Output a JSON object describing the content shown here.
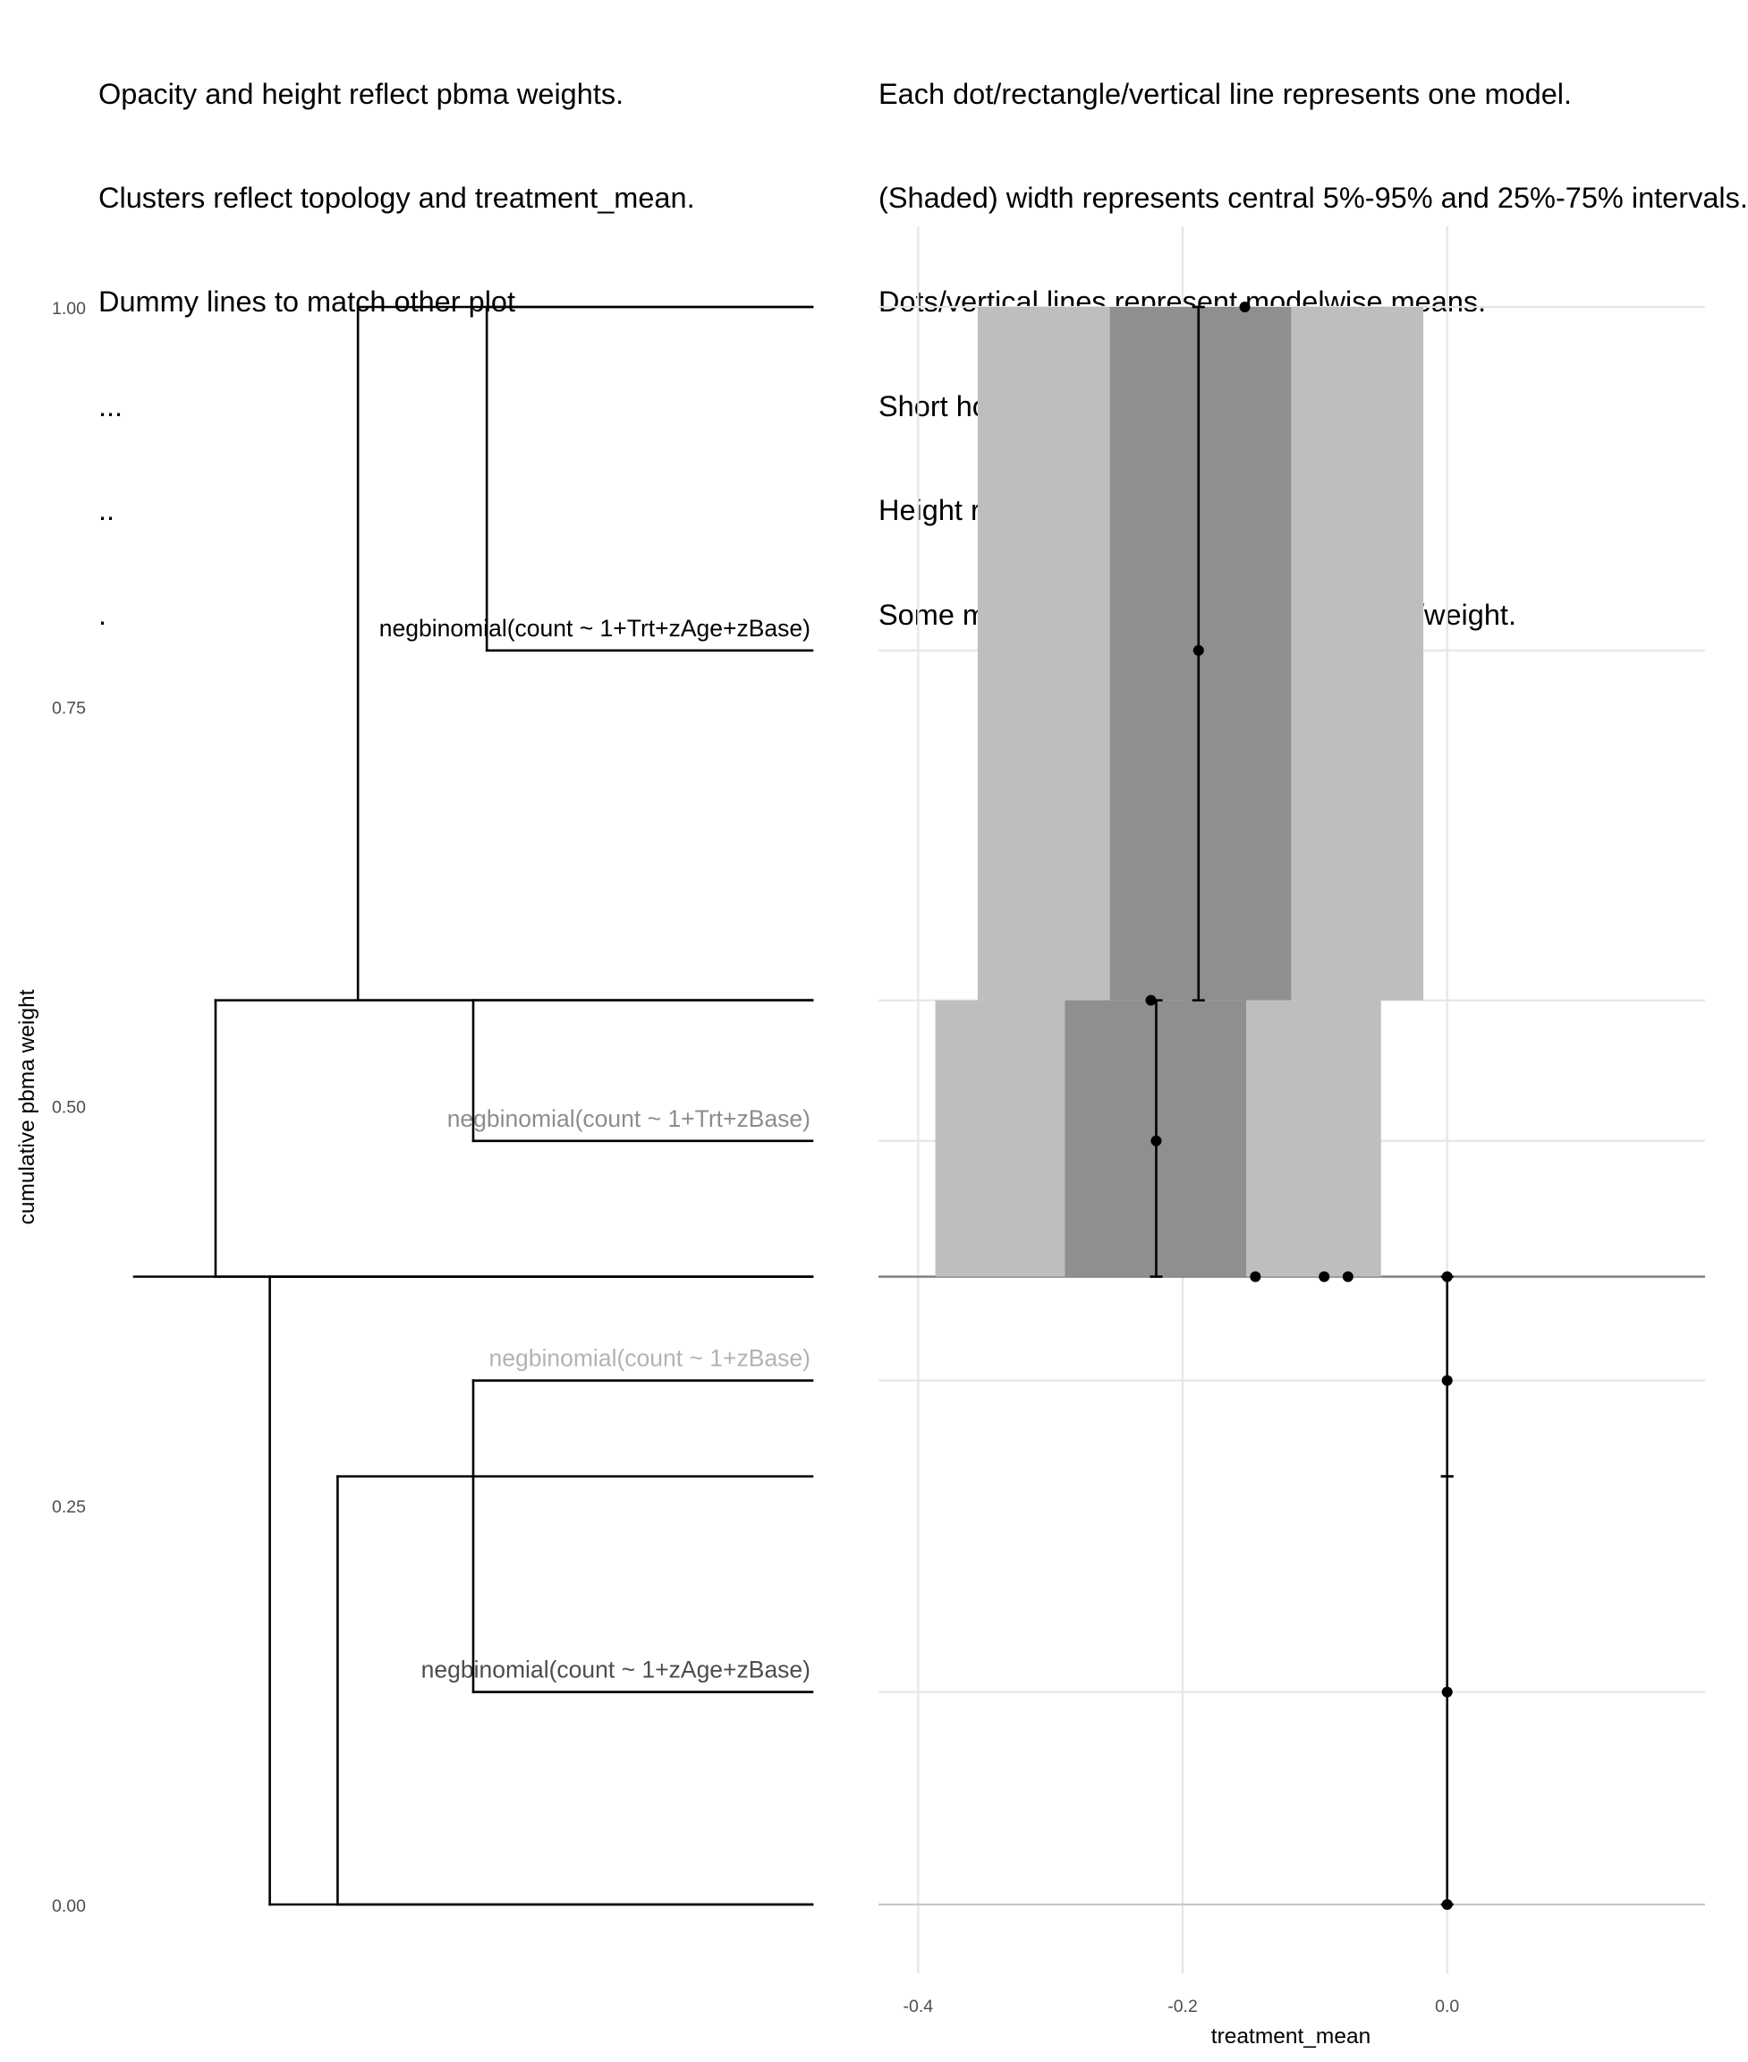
{
  "left_caption": [
    "Opacity and height reflect pbma weights.",
    "Clusters reflect topology and treatment_mean.",
    "Dummy lines to match other plot",
    "...",
    "..",
    "."
  ],
  "right_caption": [
    "Each dot/rectangle/vertical line represents one model.",
    "(Shaded) width represents central 5%-95% and 25%-75% intervals.",
    "Dots/vertical lines represent modelwise means.",
    "Short horizontal lines separate models.",
    "Height represent pbma weights.",
    "Some models have effectively zero height/weight."
  ],
  "colors": {
    "outer_interval": "#bebebe",
    "inner_interval": "#8f8f8f",
    "grid": "#e6e6e6",
    "ink": "#000000"
  },
  "chart_data": [
    {
      "type": "dendrogram",
      "ylabel": "cumulative pbma weight",
      "ylim": [
        0,
        1
      ],
      "yticks": [
        0,
        0.25,
        0.5,
        0.75,
        1
      ],
      "ytick_labels": [
        "0.00",
        "0.25",
        "0.50",
        "0.75",
        "1.00"
      ],
      "root_y": 0.393,
      "leaves": [
        {
          "label": "negbinomial(count ~ 1+Trt+zAge+zBase)",
          "y": 0.785,
          "opacity": 1.0
        },
        {
          "label": "negbinomial(count ~ 1+Trt+zBase)",
          "y": 0.478,
          "opacity": 0.45
        },
        {
          "label": "negbinomial(count ~ 1+zBase)",
          "y": 0.328,
          "opacity": 0.3
        },
        {
          "label": "negbinomial(count ~ 1+zAge+zBase)",
          "y": 0.133,
          "opacity": 0.7
        }
      ],
      "merges": [
        {
          "children": [
            "negbinomial(count ~ 1+Trt+zAge+zBase)",
            "top"
          ],
          "span": [
            0.785,
            1.0
          ],
          "height": 0.52
        },
        {
          "children": [
            "negbinomial(count ~ 1+Trt+zBase)",
            "upper-right"
          ],
          "span": [
            0.478,
            0.566
          ],
          "height": 0.5
        },
        {
          "children": [
            "upper-cluster-a",
            "upper-cluster-b"
          ],
          "span": [
            0.566,
            1.0
          ],
          "height": 0.33
        },
        {
          "children": [
            "upper",
            "root"
          ],
          "span": [
            0.393,
            0.566
          ],
          "height": 0.12
        },
        {
          "children": [
            "negbinomial(count ~ 1+zBase)",
            "negbinomial(count ~ 1+zAge+zBase)"
          ],
          "span": [
            0.133,
            0.328
          ],
          "height": 0.5
        },
        {
          "children": [
            "lower-pair",
            "bottom"
          ],
          "span": [
            0.0,
            0.268
          ],
          "height": 0.3
        },
        {
          "children": [
            "lower",
            "root"
          ],
          "span": [
            0.0,
            0.393
          ],
          "height": 0.2
        }
      ]
    },
    {
      "type": "interval",
      "xlabel": "treatment_mean",
      "xlim": [
        -0.43,
        0.195
      ],
      "xticks": [
        -0.4,
        -0.2,
        0.0
      ],
      "xtick_labels": [
        "-0.4",
        "-0.2",
        "0.0"
      ],
      "ylim": [
        0,
        1
      ],
      "horizontal_lines": [
        1.0,
        0.785,
        0.566,
        0.478,
        0.393,
        0.328,
        0.133,
        0.0
      ],
      "vline_x": 0.0,
      "models": [
        {
          "y_range": [
            0.566,
            1.0
          ],
          "q05": -0.355,
          "q25": -0.255,
          "q75": -0.118,
          "q95": -0.018,
          "mean": -0.188
        },
        {
          "y_range": [
            0.393,
            0.566
          ],
          "q05": -0.387,
          "q25": -0.289,
          "q75": -0.152,
          "q95": -0.05,
          "mean": -0.22
        },
        {
          "y_range": [
            0.268,
            0.393
          ],
          "q05": 0.0,
          "q25": 0.0,
          "q75": 0.0,
          "q95": 0.0,
          "mean": 0.0
        },
        {
          "y_range": [
            0.0,
            0.268
          ],
          "q05": 0.0,
          "q25": 0.0,
          "q75": 0.0,
          "q95": 0.0,
          "mean": 0.0
        }
      ],
      "points": [
        {
          "x": -0.153,
          "y": 1.0
        },
        {
          "x": -0.188,
          "y": 0.785
        },
        {
          "x": -0.224,
          "y": 0.566
        },
        {
          "x": -0.22,
          "y": 0.478
        },
        {
          "x": -0.145,
          "y": 0.393
        },
        {
          "x": -0.093,
          "y": 0.393
        },
        {
          "x": -0.075,
          "y": 0.393
        },
        {
          "x": 0.0,
          "y": 0.393
        },
        {
          "x": 0.0,
          "y": 0.328
        },
        {
          "x": 0.0,
          "y": 0.133
        },
        {
          "x": 0.0,
          "y": 0.0
        }
      ]
    }
  ]
}
